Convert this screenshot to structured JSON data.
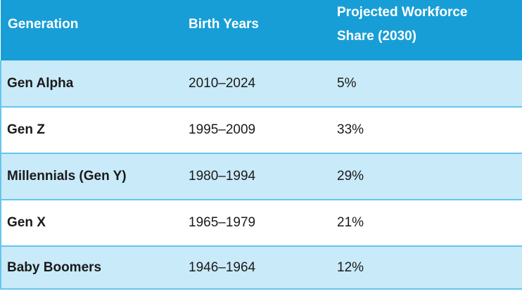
{
  "table": {
    "columns": [
      {
        "label": "Generation"
      },
      {
        "label": "Birth Years"
      },
      {
        "label": "Projected Workforce Share (2030)"
      }
    ],
    "rows": [
      {
        "generation": "Gen Alpha",
        "birth_years": "2010–2024",
        "share": "5%"
      },
      {
        "generation": "Gen Z",
        "birth_years": "1995–2009",
        "share": "33%"
      },
      {
        "generation": "Millennials (Gen Y)",
        "birth_years": "1980–1994",
        "share": "29%"
      },
      {
        "generation": "Gen X",
        "birth_years": "1965–1979",
        "share": "21%"
      },
      {
        "generation": "Baby Boomers",
        "birth_years": "1946–1964",
        "share": "12%"
      }
    ]
  },
  "colors": {
    "header_bg": "#189ed6",
    "header_text": "#ffffff",
    "row_alt_bg": "#c9eaf8",
    "divider": "#66c5ec",
    "body_text": "#1a1a1a"
  }
}
